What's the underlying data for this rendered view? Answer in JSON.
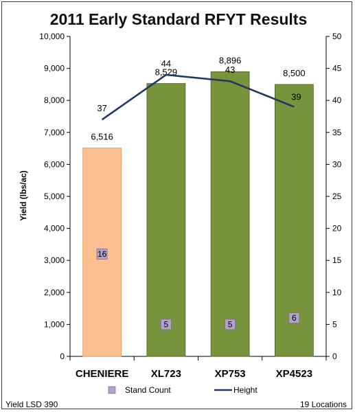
{
  "chart_data": {
    "type": "bar",
    "title": "2011 Early Standard RFYT Results",
    "ylabel": "Yield (lbs/ac)",
    "ylim": [
      0,
      10000
    ],
    "y_ticks": [
      "0",
      "1,000",
      "2,000",
      "3,000",
      "4,000",
      "5,000",
      "6,000",
      "7,000",
      "8,000",
      "9,000",
      "10,000"
    ],
    "y2lim": [
      0,
      50
    ],
    "y2_ticks": [
      "0",
      "5",
      "10",
      "15",
      "20",
      "25",
      "30",
      "35",
      "40",
      "45",
      "50"
    ],
    "categories": [
      "CHENIERE",
      "XL723",
      "XP753",
      "XP4523"
    ],
    "series": [
      {
        "type": "bar",
        "values": [
          6516,
          8529,
          8896,
          8500
        ],
        "labels": [
          "6,516",
          "8,529",
          "8,896",
          "8,500"
        ],
        "colors": [
          "#FAC090",
          "#77933C",
          "#77933C",
          "#77933C"
        ]
      },
      {
        "name": "Stand Count",
        "type": "marker",
        "axis": "secondary",
        "values": [
          16,
          5,
          5,
          6
        ],
        "labels": [
          "16",
          "5",
          "5",
          "6"
        ],
        "color": "#B3A2C7"
      },
      {
        "name": "Height",
        "type": "line",
        "axis": "secondary",
        "values": [
          37,
          44,
          43,
          39
        ],
        "labels": [
          "37",
          "44",
          "43",
          "39"
        ],
        "color": "#1F3864"
      }
    ],
    "legend": "bottom",
    "grid": false
  },
  "footer": {
    "left": "Yield LSD 390",
    "right": "19 Locations"
  }
}
